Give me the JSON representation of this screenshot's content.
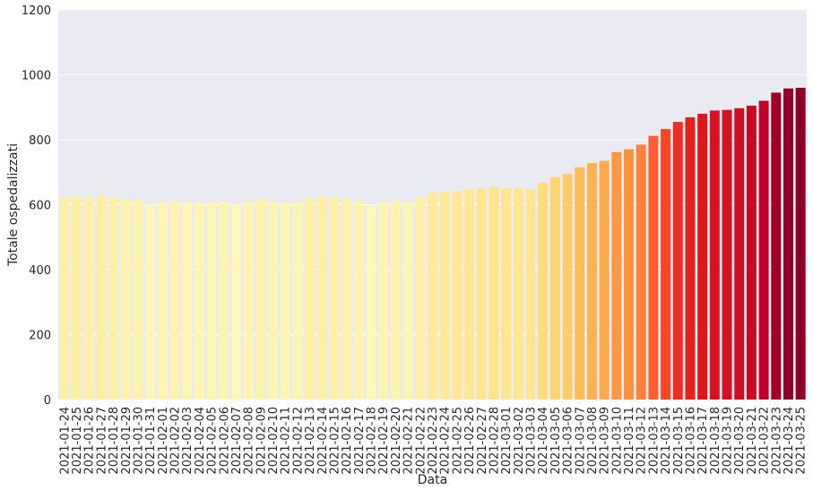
{
  "chart_data": {
    "type": "bar",
    "title": "",
    "xlabel": "Data",
    "ylabel": "Totale ospedalizzati",
    "ylim": [
      0,
      1200
    ],
    "yticks": [
      0,
      200,
      400,
      600,
      800,
      1000,
      1200
    ],
    "grid": true,
    "background_color": "#eaeaf2",
    "palette": "YlOrRd",
    "categories": [
      "2021-01-24",
      "2021-01-25",
      "2021-01-26",
      "2021-01-27",
      "2021-01-28",
      "2021-01-29",
      "2021-01-30",
      "2021-01-31",
      "2021-02-01",
      "2021-02-02",
      "2021-02-03",
      "2021-02-04",
      "2021-02-05",
      "2021-02-06",
      "2021-02-07",
      "2021-02-08",
      "2021-02-09",
      "2021-02-10",
      "2021-02-11",
      "2021-02-12",
      "2021-02-13",
      "2021-02-14",
      "2021-02-15",
      "2021-02-16",
      "2021-02-17",
      "2021-02-18",
      "2021-02-19",
      "2021-02-20",
      "2021-02-21",
      "2021-02-22",
      "2021-02-23",
      "2021-02-24",
      "2021-02-25",
      "2021-02-26",
      "2021-02-27",
      "2021-02-28",
      "2021-03-01",
      "2021-03-02",
      "2021-03-03",
      "2021-03-04",
      "2021-03-05",
      "2021-03-06",
      "2021-03-07",
      "2021-03-08",
      "2021-03-09",
      "2021-03-10",
      "2021-03-11",
      "2021-03-12",
      "2021-03-13",
      "2021-03-14",
      "2021-03-15",
      "2021-03-16",
      "2021-03-17",
      "2021-03-18",
      "2021-03-19",
      "2021-03-20",
      "2021-03-21",
      "2021-03-22",
      "2021-03-23",
      "2021-03-24",
      "2021-03-25"
    ],
    "values": [
      623,
      625,
      620,
      628,
      622,
      615,
      614,
      602,
      608,
      613,
      607,
      605,
      608,
      610,
      602,
      610,
      616,
      609,
      605,
      608,
      620,
      625,
      622,
      617,
      613,
      600,
      608,
      612,
      607,
      622,
      636,
      640,
      643,
      646,
      650,
      655,
      650,
      650,
      647,
      668,
      685,
      695,
      715,
      728,
      735,
      762,
      771,
      785,
      812,
      833,
      855,
      869,
      880,
      890,
      892,
      897,
      905,
      920,
      945,
      958,
      960
    ]
  }
}
